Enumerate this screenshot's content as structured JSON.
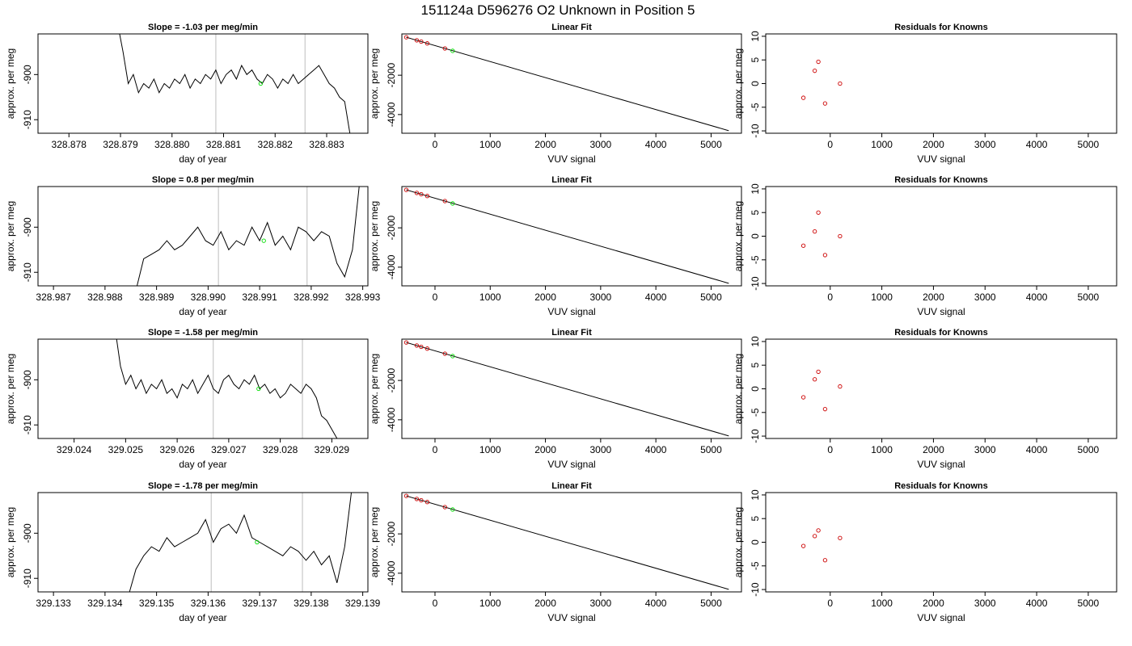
{
  "figure": {
    "title": "151124a      D596276   O2 Unknown in Position  5",
    "colors": {
      "line": "#000000",
      "known_point": "#cc0000",
      "unknown_point": "#00dd00",
      "vline": "#bdbdbd"
    }
  },
  "chart_data": [
    {
      "type": "line",
      "row": 0,
      "col": 0,
      "title": "Slope =  -1.03  per meg/min",
      "xlabel": "day of year",
      "ylabel": "approx. per meg",
      "xlim": [
        328.8774,
        328.8838
      ],
      "ylim": [
        -913,
        -891
      ],
      "xticks": [
        "328.878",
        "328.879",
        "328.880",
        "328.881",
        "328.882",
        "328.883"
      ],
      "yticks": [
        "-900",
        "-910"
      ],
      "vlines": [
        328.88085,
        328.88258
      ],
      "x": [
        328.87895,
        328.87905,
        328.87915,
        328.87925,
        328.87935,
        328.87945,
        328.87955,
        328.87965,
        328.87975,
        328.87985,
        328.87995,
        328.88005,
        328.88015,
        328.88025,
        328.88035,
        328.88045,
        328.88055,
        328.88065,
        328.88075,
        328.88085,
        328.88095,
        328.88105,
        328.88115,
        328.88125,
        328.88135,
        328.88145,
        328.88155,
        328.88165,
        328.88175,
        328.88185,
        328.88195,
        328.88205,
        328.88215,
        328.88225,
        328.88235,
        328.88245,
        328.88255,
        328.88265,
        328.88275,
        328.88285,
        328.88295,
        328.88305,
        328.88315,
        328.88325,
        328.88335,
        328.88345
      ],
      "y": [
        -889,
        -895,
        -902,
        -900,
        -904,
        -902,
        -903,
        -901,
        -904,
        -902,
        -903,
        -901,
        -902,
        -900,
        -903,
        -901,
        -902,
        -900,
        -901,
        -899,
        -902,
        -900,
        -899,
        -901,
        -898,
        -900,
        -899,
        -901,
        -902,
        -900,
        -901,
        -903,
        -901,
        -902,
        -900,
        -902,
        -901,
        -900,
        -899,
        -898,
        -900,
        -902,
        -903,
        -905,
        -906,
        -913
      ],
      "point": {
        "x": 328.88172,
        "y": -902
      }
    },
    {
      "type": "scatter",
      "row": 0,
      "col": 1,
      "title": "Linear Fit",
      "xlabel": "VUV signal",
      "ylabel": "approx. per meg",
      "xlim": [
        -600,
        5550
      ],
      "ylim": [
        -4950,
        100
      ],
      "xticks": [
        "0",
        "1000",
        "2000",
        "3000",
        "4000",
        "5000"
      ],
      "yticks": [
        "-2000",
        "-4000"
      ],
      "fit": {
        "x": [
          -520,
          5320
        ],
        "y": [
          -70,
          -4820
        ]
      },
      "known_x": [
        -520,
        -330,
        -250,
        -140,
        180
      ],
      "known_y": [
        -70,
        -225,
        -290,
        -380,
        -640
      ],
      "point": {
        "x": 320,
        "y": -760
      }
    },
    {
      "type": "scatter",
      "row": 0,
      "col": 2,
      "title": "Residuals for Knowns",
      "xlabel": "VUV signal",
      "ylabel": "approx. per meg",
      "xlim": [
        -1250,
        5550
      ],
      "ylim": [
        -10.5,
        10.5
      ],
      "xticks": [
        "0",
        "1000",
        "2000",
        "3000",
        "4000",
        "5000"
      ],
      "yticks": [
        "10",
        "5",
        "0",
        "-5",
        "-10"
      ],
      "known_x": [
        -520,
        -300,
        -230,
        -100,
        190
      ],
      "known_y": [
        -3,
        2.7,
        4.6,
        -4.2,
        0
      ]
    },
    {
      "type": "line",
      "row": 1,
      "col": 0,
      "title": "Slope =  0.8  per meg/min",
      "xlabel": "day of year",
      "ylabel": "approx. per meg",
      "xlim": [
        328.9867,
        328.9931
      ],
      "ylim": [
        -913,
        -891
      ],
      "xticks": [
        "328.987",
        "328.988",
        "328.989",
        "328.990",
        "328.991",
        "328.992",
        "328.993"
      ],
      "yticks": [
        "-900",
        "-910"
      ],
      "vlines": [
        328.9902,
        328.99192
      ],
      "x": [
        328.9886,
        328.98875,
        328.9889,
        328.98905,
        328.9892,
        328.98935,
        328.9895,
        328.98965,
        328.9898,
        328.98995,
        328.9901,
        328.99025,
        328.9904,
        328.99055,
        328.9907,
        328.99085,
        328.991,
        328.99115,
        328.9913,
        328.99145,
        328.9916,
        328.99175,
        328.9919,
        328.99205,
        328.9922,
        328.99235,
        328.9925,
        328.99265,
        328.9928,
        328.99295
      ],
      "y": [
        -914,
        -907,
        -906,
        -905,
        -903,
        -905,
        -904,
        -902,
        -900,
        -903,
        -904,
        -901,
        -905,
        -903,
        -904,
        -900,
        -903,
        -899,
        -904,
        -902,
        -905,
        -900,
        -901,
        -903,
        -901,
        -902,
        -908,
        -911,
        -905,
        -889
      ],
      "point": {
        "x": 328.99108,
        "y": -903
      }
    },
    {
      "type": "scatter",
      "row": 1,
      "col": 1,
      "title": "Linear Fit",
      "xlabel": "VUV signal",
      "ylabel": "approx. per meg",
      "xlim": [
        -600,
        5550
      ],
      "ylim": [
        -4950,
        100
      ],
      "xticks": [
        "0",
        "1000",
        "2000",
        "3000",
        "4000",
        "5000"
      ],
      "yticks": [
        "-2000",
        "-4000"
      ],
      "fit": {
        "x": [
          -520,
          5320
        ],
        "y": [
          -70,
          -4820
        ]
      },
      "known_x": [
        -520,
        -330,
        -250,
        -140,
        180
      ],
      "known_y": [
        -70,
        -225,
        -290,
        -380,
        -640
      ],
      "point": {
        "x": 320,
        "y": -760
      }
    },
    {
      "type": "scatter",
      "row": 1,
      "col": 2,
      "title": "Residuals for Knowns",
      "xlabel": "VUV signal",
      "ylabel": "approx. per meg",
      "xlim": [
        -1250,
        5550
      ],
      "ylim": [
        -10.5,
        10.5
      ],
      "xticks": [
        "0",
        "1000",
        "2000",
        "3000",
        "4000",
        "5000"
      ],
      "yticks": [
        "10",
        "5",
        "0",
        "-5",
        "-10"
      ],
      "known_x": [
        -520,
        -300,
        -230,
        -100,
        190
      ],
      "known_y": [
        -2,
        1,
        5,
        -4,
        0
      ]
    },
    {
      "type": "line",
      "row": 2,
      "col": 0,
      "title": "Slope =  -1.58  per meg/min",
      "xlabel": "day of year",
      "ylabel": "approx. per meg",
      "xlim": [
        329.0233,
        329.0297
      ],
      "ylim": [
        -913,
        -891
      ],
      "xticks": [
        "329.024",
        "329.025",
        "329.026",
        "329.027",
        "329.028",
        "329.029"
      ],
      "yticks": [
        "-900",
        "-910"
      ],
      "vlines": [
        329.0267,
        329.02843
      ],
      "x": [
        329.0248,
        329.0249,
        329.025,
        329.0251,
        329.0252,
        329.0253,
        329.0254,
        329.0255,
        329.0256,
        329.0257,
        329.0258,
        329.0259,
        329.026,
        329.0261,
        329.0262,
        329.0263,
        329.0264,
        329.0265,
        329.0266,
        329.0267,
        329.0268,
        329.0269,
        329.027,
        329.0271,
        329.0272,
        329.0273,
        329.0274,
        329.0275,
        329.0276,
        329.0277,
        329.0278,
        329.0279,
        329.028,
        329.0281,
        329.0282,
        329.0283,
        329.0284,
        329.0285,
        329.0286,
        329.0287,
        329.0288,
        329.0289,
        329.029,
        329.0291
      ],
      "y": [
        -889,
        -897,
        -901,
        -899,
        -902,
        -900,
        -903,
        -901,
        -902,
        -900,
        -903,
        -902,
        -904,
        -901,
        -902,
        -900,
        -903,
        -901,
        -899,
        -902,
        -903,
        -900,
        -899,
        -901,
        -902,
        -900,
        -901,
        -899,
        -902,
        -901,
        -903,
        -902,
        -904,
        -903,
        -901,
        -902,
        -903,
        -901,
        -902,
        -904,
        -908,
        -909,
        -911,
        -913
      ],
      "point": {
        "x": 329.02758,
        "y": -902
      }
    },
    {
      "type": "scatter",
      "row": 2,
      "col": 1,
      "title": "Linear Fit",
      "xlabel": "VUV signal",
      "ylabel": "approx. per meg",
      "xlim": [
        -600,
        5550
      ],
      "ylim": [
        -4950,
        100
      ],
      "xticks": [
        "0",
        "1000",
        "2000",
        "3000",
        "4000",
        "5000"
      ],
      "yticks": [
        "-2000",
        "-4000"
      ],
      "fit": {
        "x": [
          -520,
          5320
        ],
        "y": [
          -70,
          -4820
        ]
      },
      "known_x": [
        -520,
        -330,
        -250,
        -140,
        180
      ],
      "known_y": [
        -70,
        -225,
        -290,
        -380,
        -640
      ],
      "point": {
        "x": 320,
        "y": -760
      }
    },
    {
      "type": "scatter",
      "row": 2,
      "col": 2,
      "title": "Residuals for Knowns",
      "xlabel": "VUV signal",
      "ylabel": "approx. per meg",
      "xlim": [
        -1250,
        5550
      ],
      "ylim": [
        -10.5,
        10.5
      ],
      "xticks": [
        "0",
        "1000",
        "2000",
        "3000",
        "4000",
        "5000"
      ],
      "yticks": [
        "10",
        "5",
        "0",
        "-5",
        "-10"
      ],
      "known_x": [
        -520,
        -300,
        -230,
        -100,
        190
      ],
      "known_y": [
        -1.8,
        2,
        3.6,
        -4.3,
        0.5
      ]
    },
    {
      "type": "line",
      "row": 3,
      "col": 0,
      "title": "Slope =  -1.78  per meg/min",
      "xlabel": "day of year",
      "ylabel": "approx. per meg",
      "xlim": [
        329.1327,
        329.1391
      ],
      "ylim": [
        -913,
        -891
      ],
      "xticks": [
        "329.133",
        "329.134",
        "329.135",
        "329.136",
        "329.137",
        "329.138",
        "329.139"
      ],
      "yticks": [
        "-900",
        "-910"
      ],
      "vlines": [
        329.13606,
        329.13783
      ],
      "x": [
        329.13445,
        329.1346,
        329.13475,
        329.1349,
        329.13505,
        329.1352,
        329.13535,
        329.1355,
        329.13565,
        329.1358,
        329.13595,
        329.1361,
        329.13625,
        329.1364,
        329.13655,
        329.1367,
        329.13685,
        329.137,
        329.13715,
        329.1373,
        329.13745,
        329.1376,
        329.13775,
        329.1379,
        329.13805,
        329.1382,
        329.13835,
        329.1385,
        329.13865,
        329.1388
      ],
      "y": [
        -914,
        -908,
        -905,
        -903,
        -904,
        -901,
        -903,
        -902,
        -901,
        -900,
        -897,
        -902,
        -899,
        -898,
        -900,
        -896,
        -901,
        -902,
        -903,
        -904,
        -905,
        -903,
        -904,
        -906,
        -904,
        -907,
        -905,
        -911,
        -903,
        -889
      ],
      "point": {
        "x": 329.13695,
        "y": -902
      }
    },
    {
      "type": "scatter",
      "row": 3,
      "col": 1,
      "title": "Linear Fit",
      "xlabel": "VUV signal",
      "ylabel": "approx. per meg",
      "xlim": [
        -600,
        5550
      ],
      "ylim": [
        -4950,
        100
      ],
      "xticks": [
        "0",
        "1000",
        "2000",
        "3000",
        "4000",
        "5000"
      ],
      "yticks": [
        "-2000",
        "-4000"
      ],
      "fit": {
        "x": [
          -520,
          5320
        ],
        "y": [
          -70,
          -4820
        ]
      },
      "known_x": [
        -520,
        -330,
        -250,
        -140,
        180
      ],
      "known_y": [
        -70,
        -225,
        -290,
        -380,
        -640
      ],
      "point": {
        "x": 320,
        "y": -760
      }
    },
    {
      "type": "scatter",
      "row": 3,
      "col": 2,
      "title": "Residuals for Knowns",
      "xlabel": "VUV signal",
      "ylabel": "approx. per meg",
      "xlim": [
        -1250,
        5550
      ],
      "ylim": [
        -10.5,
        10.5
      ],
      "xticks": [
        "0",
        "1000",
        "2000",
        "3000",
        "4000",
        "5000"
      ],
      "yticks": [
        "10",
        "5",
        "0",
        "-5",
        "-10"
      ],
      "known_x": [
        -520,
        -300,
        -230,
        -100,
        190
      ],
      "known_y": [
        -0.8,
        1.3,
        2.5,
        -3.8,
        0.9
      ]
    }
  ]
}
